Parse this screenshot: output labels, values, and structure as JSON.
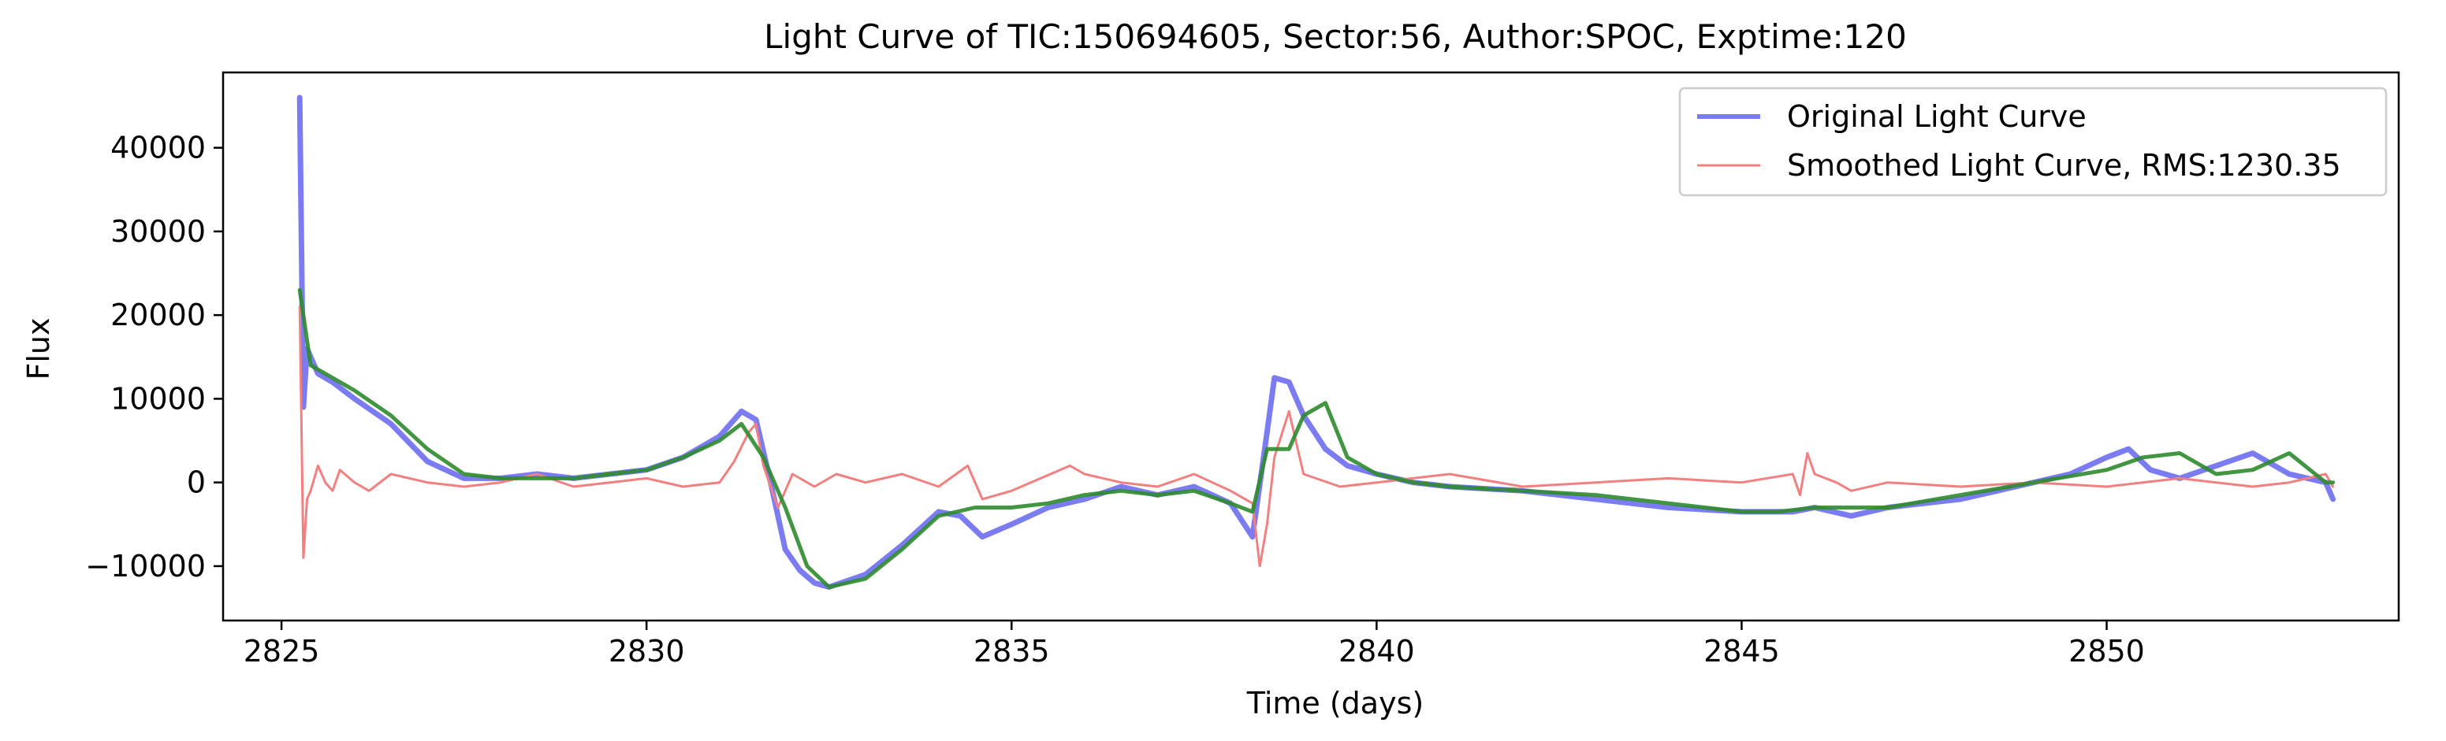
{
  "chart_data": {
    "type": "line",
    "title": "Light Curve of TIC:150694605, Sector:56, Author:SPOC, Exptime:120",
    "xlabel": "Time (days)",
    "ylabel": "Flux",
    "xlim": [
      2824.2,
      2854.0
    ],
    "ylim": [
      -16500,
      49000
    ],
    "xticks": [
      2825,
      2830,
      2835,
      2840,
      2845,
      2850
    ],
    "yticks": [
      -10000,
      0,
      10000,
      20000,
      30000,
      40000
    ],
    "tick_labels_x": [
      "2825",
      "2830",
      "2835",
      "2840",
      "2845",
      "2850"
    ],
    "tick_labels_y": [
      "−10000",
      "0",
      "10000",
      "20000",
      "30000",
      "40000"
    ],
    "grid": false,
    "legend_position": "upper right",
    "colors": {
      "original": "#7b7bf2",
      "residual": "#f28080",
      "trend": "#2e8b2e"
    },
    "legend": [
      {
        "label": "Original Light Curve",
        "color": "#7b7bf2"
      },
      {
        "label": "Smoothed Light Curve, RMS:1230.35",
        "color": "#f28080"
      }
    ],
    "series": [
      {
        "name": "Original Light Curve",
        "x": [
          2825.25,
          2825.3,
          2825.35,
          2825.5,
          2825.7,
          2826.0,
          2826.5,
          2827.0,
          2827.5,
          2828.0,
          2828.5,
          2829.0,
          2829.5,
          2830.0,
          2830.5,
          2831.0,
          2831.3,
          2831.5,
          2831.7,
          2831.9,
          2832.1,
          2832.3,
          2832.5,
          2833.0,
          2833.5,
          2834.0,
          2834.3,
          2834.6,
          2835.0,
          2835.5,
          2836.0,
          2836.5,
          2837.0,
          2837.5,
          2838.0,
          2838.3,
          2838.5,
          2838.6,
          2838.8,
          2839.0,
          2839.3,
          2839.6,
          2840.0,
          2840.5,
          2841.0,
          2842.0,
          2843.0,
          2844.0,
          2845.0,
          2845.7,
          2846.0,
          2846.5,
          2847.0,
          2848.0,
          2849.0,
          2849.5,
          2850.0,
          2850.3,
          2850.6,
          2851.0,
          2851.5,
          2852.0,
          2852.5,
          2853.0,
          2853.1
        ],
        "y": [
          46000,
          9000,
          16000,
          13000,
          12000,
          10000,
          7000,
          2500,
          500,
          500,
          1000,
          500,
          1000,
          1500,
          3000,
          5500,
          8500,
          7500,
          0,
          -8000,
          -10500,
          -12000,
          -12500,
          -11000,
          -7500,
          -3500,
          -4000,
          -6500,
          -5000,
          -3000,
          -2000,
          -500,
          -1500,
          -500,
          -2500,
          -6500,
          6000,
          12500,
          12000,
          8000,
          4000,
          2000,
          1000,
          0,
          -500,
          -1000,
          -2000,
          -3000,
          -3500,
          -3500,
          -3000,
          -4000,
          -3000,
          -2000,
          0,
          1000,
          3000,
          4000,
          1500,
          500,
          2000,
          3500,
          1000,
          0,
          -2000
        ]
      },
      {
        "name": "",
        "x": [
          2825.25,
          2825.3,
          2825.35,
          2825.4,
          2825.5,
          2825.6,
          2825.7,
          2825.8,
          2826.0,
          2826.2,
          2826.5,
          2827.0,
          2827.5,
          2828.0,
          2828.5,
          2829.0,
          2829.5,
          2830.0,
          2830.5,
          2831.0,
          2831.2,
          2831.4,
          2831.5,
          2831.6,
          2831.7,
          2831.8,
          2831.9,
          2832.0,
          2832.3,
          2832.6,
          2833.0,
          2833.5,
          2834.0,
          2834.4,
          2834.6,
          2835.0,
          2835.8,
          2836.0,
          2836.5,
          2837.0,
          2837.5,
          2838.0,
          2838.3,
          2838.4,
          2838.5,
          2838.6,
          2838.8,
          2839.0,
          2839.5,
          2840.0,
          2841.0,
          2842.0,
          2843.0,
          2844.0,
          2845.0,
          2845.7,
          2845.8,
          2845.9,
          2846.0,
          2846.3,
          2846.5,
          2847.0,
          2848.0,
          2849.0,
          2850.0,
          2851.0,
          2852.0,
          2852.5,
          2853.0,
          2853.1
        ],
        "y": [
          21000,
          -9000,
          -2000,
          -1000,
          2000,
          0,
          -1000,
          1500,
          0,
          -1000,
          1000,
          0,
          -500,
          0,
          1000,
          -500,
          0,
          500,
          -500,
          0,
          2500,
          6000,
          7000,
          2000,
          -500,
          -3000,
          -1000,
          1000,
          -500,
          1000,
          0,
          1000,
          -500,
          2000,
          -2000,
          -1000,
          2000,
          1000,
          0,
          -500,
          1000,
          -1000,
          -2500,
          -10000,
          -5000,
          3000,
          8500,
          1000,
          -500,
          0,
          1000,
          -500,
          0,
          500,
          0,
          1000,
          -1500,
          3500,
          1000,
          0,
          -1000,
          0,
          -500,
          0,
          -500,
          500,
          -500,
          0,
          1000,
          -500
        ]
      },
      {
        "name": "",
        "x": [
          2825.25,
          2825.4,
          2825.6,
          2826.0,
          2826.5,
          2827.0,
          2827.5,
          2828.0,
          2828.5,
          2829.0,
          2829.5,
          2830.0,
          2830.5,
          2831.0,
          2831.3,
          2831.6,
          2831.9,
          2832.2,
          2832.5,
          2833.0,
          2833.5,
          2834.0,
          2834.5,
          2835.0,
          2835.5,
          2836.0,
          2836.5,
          2837.0,
          2837.5,
          2838.0,
          2838.3,
          2838.5,
          2838.8,
          2839.0,
          2839.3,
          2839.6,
          2840.0,
          2840.5,
          2841.0,
          2842.0,
          2843.0,
          2844.0,
          2845.0,
          2845.5,
          2846.0,
          2846.5,
          2847.0,
          2848.0,
          2849.0,
          2850.0,
          2850.5,
          2851.0,
          2851.5,
          2852.0,
          2852.5,
          2853.0,
          2853.1
        ],
        "y": [
          23000,
          14000,
          13000,
          11000,
          8000,
          4000,
          1000,
          500,
          500,
          500,
          1000,
          1500,
          3000,
          5000,
          7000,
          3000,
          -3000,
          -10000,
          -12500,
          -11500,
          -8000,
          -4000,
          -3000,
          -3000,
          -2500,
          -1500,
          -1000,
          -1500,
          -1000,
          -2500,
          -3500,
          4000,
          4000,
          8000,
          9500,
          3000,
          1000,
          0,
          -500,
          -1000,
          -1500,
          -2500,
          -3500,
          -3500,
          -3000,
          -3000,
          -3000,
          -1500,
          0,
          1500,
          3000,
          3500,
          1000,
          1500,
          3500,
          0,
          0
        ]
      }
    ]
  }
}
